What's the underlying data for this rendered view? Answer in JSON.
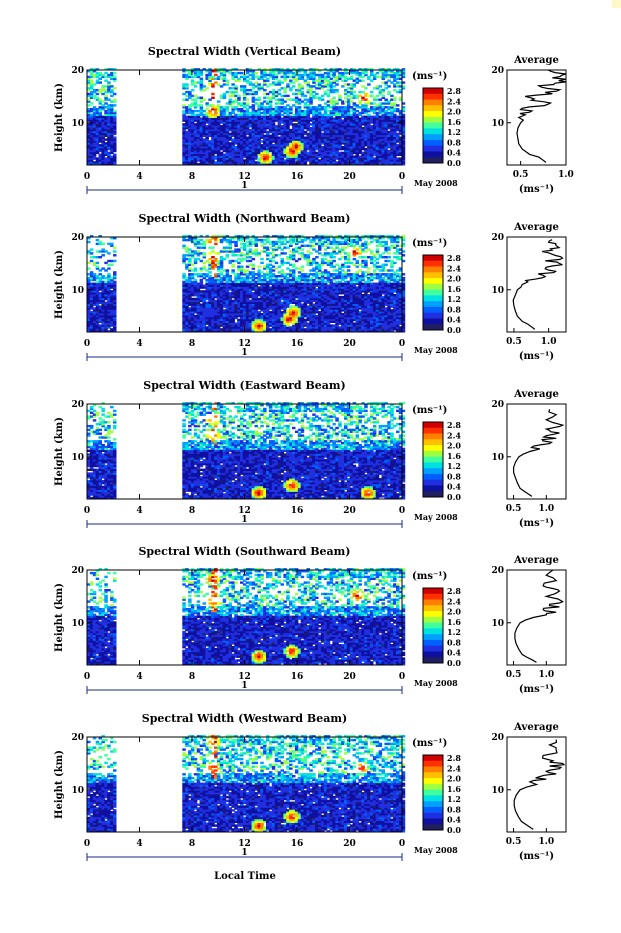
{
  "figure": {
    "xlabel": "Local Time",
    "date_label": "May 2008",
    "day_label": "1"
  },
  "colorbar": {
    "unit": "(ms⁻¹)",
    "ticks": [
      "2.8",
      "2.4",
      "2.0",
      "1.6",
      "1.2",
      "0.8",
      "0.4",
      "0.0"
    ],
    "colors": [
      "#d00000",
      "#ff3000",
      "#ff8000",
      "#ffc000",
      "#ffff00",
      "#a0ff40",
      "#40ffa0",
      "#00e0e0",
      "#00a0ff",
      "#0060ff",
      "#2030e0",
      "#1010a0",
      "#202060"
    ]
  },
  "chart_data": [
    {
      "type": "heatmap",
      "title": "Spectral Width (Vertical Beam)",
      "ylabel": "Height (km)",
      "xticks": [
        "0",
        "4",
        "8",
        "12",
        "16",
        "20",
        "0"
      ],
      "yticks": [
        "20",
        "10"
      ],
      "xlim": [
        0,
        24
      ],
      "ylim": [
        2,
        20
      ],
      "data_gap_hours": [
        2.3,
        7.2
      ],
      "high_spots": [
        {
          "x": 9.5,
          "y": 16.5
        },
        {
          "x": 9.5,
          "y": 12
        },
        {
          "x": 13.5,
          "y": 3.3
        },
        {
          "x": 15.5,
          "y": 4.5
        },
        {
          "x": 15.8,
          "y": 5.3
        },
        {
          "x": 21,
          "y": 14.5
        }
      ],
      "profile": {
        "title": "Average",
        "xlabel": "(ms⁻¹)",
        "xticks": [
          "0.5",
          "1.0"
        ],
        "yticks": [
          "20",
          "10"
        ],
        "xlim": [
          0.35,
          1.0
        ],
        "ylim": [
          2,
          20
        ],
        "x": [
          0.78,
          0.74,
          0.7,
          0.6,
          0.52,
          0.48,
          0.47,
          0.46,
          0.47,
          0.5,
          0.53,
          0.48,
          0.55,
          0.6,
          0.5,
          0.6,
          0.8,
          0.75,
          0.65,
          0.55,
          0.85,
          0.9,
          0.8,
          0.7,
          0.88,
          0.92,
          0.85,
          0.95,
          0.88,
          0.8
        ],
        "y": [
          2.5,
          3,
          3.5,
          4,
          5,
          6,
          7,
          8,
          9,
          10,
          10.5,
          11,
          11.5,
          12,
          12.5,
          13,
          13.5,
          14,
          14.5,
          15,
          15.5,
          16,
          16.5,
          17,
          17.5,
          18,
          18.5,
          19,
          19.5,
          20
        ]
      }
    },
    {
      "type": "heatmap",
      "title": "Spectral Width (Northward Beam)",
      "ylabel": "Height (km)",
      "xticks": [
        "0",
        "4",
        "8",
        "12",
        "16",
        "20",
        "0"
      ],
      "yticks": [
        "20",
        "10"
      ],
      "xlim": [
        0,
        24
      ],
      "ylim": [
        2,
        20
      ],
      "data_gap_hours": [
        2.3,
        7.2
      ],
      "high_spots": [
        {
          "x": 9.5,
          "y": 19
        },
        {
          "x": 9.5,
          "y": 16
        },
        {
          "x": 13,
          "y": 3
        },
        {
          "x": 15.3,
          "y": 4.3
        },
        {
          "x": 15.6,
          "y": 5.5
        },
        {
          "x": 20.3,
          "y": 17
        }
      ],
      "profile": {
        "title": "Average",
        "xlabel": "(ms⁻¹)",
        "xticks": [
          "0.5",
          "1.0"
        ],
        "yticks": [
          "20",
          "10"
        ],
        "xlim": [
          0.4,
          1.25
        ],
        "ylim": [
          2,
          20
        ],
        "x": [
          0.8,
          0.75,
          0.7,
          0.62,
          0.55,
          0.52,
          0.5,
          0.49,
          0.52,
          0.55,
          0.6,
          0.62,
          0.7,
          0.8,
          0.95,
          0.85,
          1.1,
          0.95,
          1.05,
          1.15,
          0.95,
          1.2,
          1.1,
          1.0,
          1.05,
          1.15,
          1.1,
          1.0,
          1.05
        ],
        "y": [
          2.5,
          3,
          3.5,
          4,
          5,
          6,
          7,
          8,
          9,
          10,
          10.5,
          11,
          11.5,
          12,
          12.5,
          13,
          13.5,
          14,
          14.5,
          15,
          15.5,
          16,
          16.5,
          17,
          17.5,
          18,
          18.5,
          19,
          19.5
        ]
      }
    },
    {
      "type": "heatmap",
      "title": "Spectral Width (Eastward Beam)",
      "ylabel": "Height (km)",
      "xticks": [
        "0",
        "4",
        "8",
        "12",
        "16",
        "20",
        "0"
      ],
      "yticks": [
        "20",
        "10"
      ],
      "xlim": [
        0,
        24
      ],
      "ylim": [
        2,
        20
      ],
      "data_gap_hours": [
        2.3,
        7.2
      ],
      "high_spots": [
        {
          "x": 9.5,
          "y": 17
        },
        {
          "x": 9.5,
          "y": 14
        },
        {
          "x": 13,
          "y": 3
        },
        {
          "x": 15.5,
          "y": 4.5
        },
        {
          "x": 21.3,
          "y": 3
        }
      ],
      "profile": {
        "title": "Average",
        "xlabel": "(ms⁻¹)",
        "xticks": [
          "0.5",
          "1.0"
        ],
        "yticks": [
          "20",
          "10"
        ],
        "xlim": [
          0.4,
          1.3
        ],
        "ylim": [
          2,
          20
        ],
        "x": [
          0.78,
          0.72,
          0.66,
          0.6,
          0.56,
          0.53,
          0.5,
          0.5,
          0.53,
          0.58,
          0.65,
          0.75,
          0.9,
          0.8,
          1.05,
          0.95,
          1.15,
          1.0,
          1.2,
          1.05,
          1.1,
          1.25,
          1.0,
          1.15,
          1.05
        ],
        "y": [
          2.5,
          3,
          3.5,
          4,
          5,
          6,
          7,
          8,
          9,
          10,
          10.5,
          11,
          11.5,
          12,
          12.5,
          13,
          13.5,
          14,
          14.5,
          15,
          15.5,
          16,
          17,
          18,
          19
        ]
      }
    },
    {
      "type": "heatmap",
      "title": "Spectral Width (Southward Beam)",
      "ylabel": "Height (km)",
      "xticks": [
        "0",
        "4",
        "8",
        "12",
        "16",
        "20",
        "0"
      ],
      "yticks": [
        "20",
        "10"
      ],
      "xlim": [
        0,
        24
      ],
      "ylim": [
        2,
        20
      ],
      "data_gap_hours": [
        2.3,
        7.2
      ],
      "high_spots": [
        {
          "x": 9.5,
          "y": 18
        },
        {
          "x": 9.5,
          "y": 14
        },
        {
          "x": 13,
          "y": 3.5
        },
        {
          "x": 15.5,
          "y": 4.5
        },
        {
          "x": 20.5,
          "y": 15
        }
      ],
      "profile": {
        "title": "Average",
        "xlabel": "(ms⁻¹)",
        "xticks": [
          "0.5",
          "1.0"
        ],
        "yticks": [
          "20",
          "10"
        ],
        "xlim": [
          0.4,
          1.3
        ],
        "ylim": [
          2,
          20
        ],
        "x": [
          0.85,
          0.78,
          0.7,
          0.63,
          0.58,
          0.54,
          0.52,
          0.52,
          0.55,
          0.6,
          0.68,
          0.8,
          1.0,
          1.15,
          0.95,
          1.2,
          1.05,
          1.25,
          1.0,
          1.2,
          1.1,
          0.95,
          1.15,
          1.0,
          1.1
        ],
        "y": [
          2.5,
          3,
          3.5,
          4,
          5,
          6,
          7,
          8,
          9,
          10,
          10.5,
          11,
          11.5,
          12,
          12.5,
          13,
          13.5,
          14,
          15,
          16,
          16.5,
          17,
          18,
          19,
          20
        ]
      }
    },
    {
      "type": "heatmap",
      "title": "Spectral Width (Westward Beam)",
      "ylabel": "Height (km)",
      "xticks": [
        "0",
        "4",
        "8",
        "12",
        "16",
        "20",
        "0"
      ],
      "yticks": [
        "20",
        "10"
      ],
      "xlim": [
        0,
        24
      ],
      "ylim": [
        2,
        20
      ],
      "data_gap_hours": [
        2.3,
        7.2
      ],
      "high_spots": [
        {
          "x": 9.5,
          "y": 19
        },
        {
          "x": 9.5,
          "y": 14
        },
        {
          "x": 13,
          "y": 3
        },
        {
          "x": 15.5,
          "y": 4.8
        },
        {
          "x": 20.8,
          "y": 14
        }
      ],
      "profile": {
        "title": "Average",
        "xlabel": "(ms⁻¹)",
        "xticks": [
          "0.5",
          "1.0"
        ],
        "yticks": [
          "20",
          "10"
        ],
        "xlim": [
          0.4,
          1.3
        ],
        "ylim": [
          2,
          20
        ],
        "x": [
          0.8,
          0.74,
          0.68,
          0.62,
          0.57,
          0.53,
          0.51,
          0.51,
          0.54,
          0.6,
          0.7,
          0.85,
          0.75,
          1.0,
          0.9,
          1.15,
          1.0,
          1.2,
          1.05,
          1.25,
          1.1,
          0.95,
          1.15,
          1.05,
          1.15
        ],
        "y": [
          2.5,
          3,
          3.5,
          4,
          5,
          6,
          7,
          8,
          9,
          10,
          10.5,
          11,
          11.5,
          12,
          12.5,
          13,
          13.5,
          14,
          14.5,
          15,
          15.5,
          16.5,
          17.5,
          18.5,
          19.5
        ]
      }
    }
  ]
}
